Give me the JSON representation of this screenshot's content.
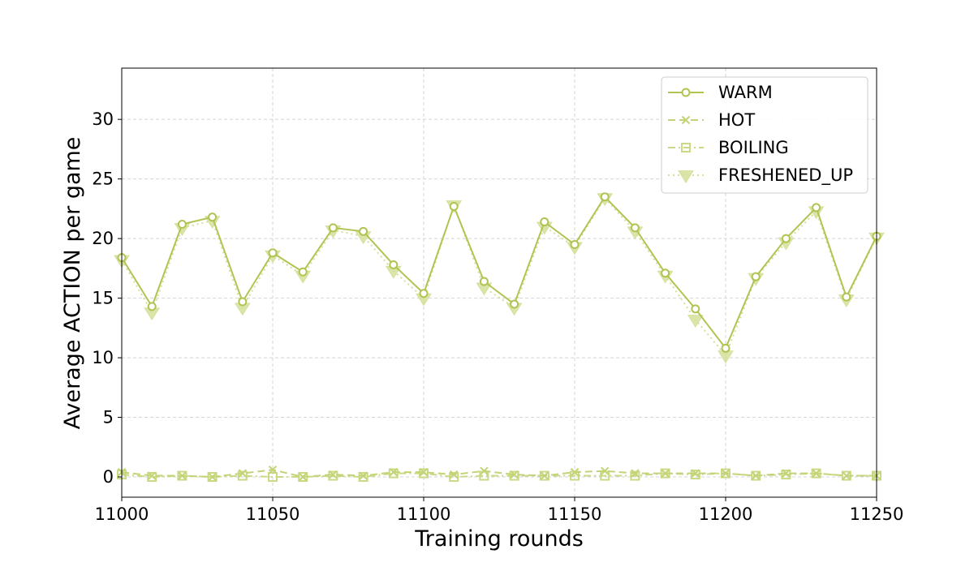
{
  "chart_data": {
    "type": "line",
    "title": "",
    "xlabel": "Training rounds",
    "ylabel": "Average ACTION per game",
    "xlim": [
      11000,
      11250
    ],
    "ylim": [
      -1.7,
      34.3
    ],
    "xticks": [
      11000,
      11050,
      11100,
      11150,
      11200,
      11250
    ],
    "yticks": [
      0,
      5,
      10,
      15,
      20,
      25,
      30
    ],
    "grid": true,
    "legend_position": "top-right",
    "x": [
      11000,
      11010,
      11020,
      11030,
      11040,
      11050,
      11060,
      11070,
      11080,
      11090,
      11100,
      11110,
      11120,
      11130,
      11140,
      11150,
      11160,
      11170,
      11180,
      11190,
      11200,
      11210,
      11220,
      11230,
      11240,
      11250
    ],
    "series": [
      {
        "name": "WARM",
        "color": "#b0c452",
        "line_style": "solid",
        "marker": "circle",
        "values": [
          18.4,
          14.3,
          21.2,
          21.8,
          14.7,
          18.8,
          17.2,
          20.9,
          20.6,
          17.8,
          15.4,
          22.7,
          16.4,
          14.5,
          21.4,
          19.5,
          23.5,
          20.9,
          17.1,
          14.1,
          10.8,
          16.8,
          20.0,
          22.6,
          15.1,
          20.2
        ]
      },
      {
        "name": "HOT",
        "color": "#c2d475",
        "line_style": "dashed",
        "marker": "x",
        "values": [
          0.4,
          0.1,
          0.1,
          0.0,
          0.3,
          0.6,
          0.0,
          0.2,
          0.1,
          0.4,
          0.4,
          0.2,
          0.5,
          0.2,
          0.1,
          0.4,
          0.5,
          0.3,
          0.3,
          0.3,
          0.3,
          0.1,
          0.3,
          0.3,
          0.1,
          0.1
        ]
      },
      {
        "name": "BOILING",
        "color": "#c9d985",
        "line_style": "dashdot",
        "marker": "square",
        "values": [
          0.2,
          0.0,
          0.1,
          0.0,
          0.1,
          0.0,
          0.0,
          0.1,
          0.0,
          0.3,
          0.3,
          0.0,
          0.1,
          0.1,
          0.1,
          0.1,
          0.1,
          0.1,
          0.3,
          0.2,
          0.3,
          0.1,
          0.2,
          0.3,
          0.1,
          0.1
        ]
      },
      {
        "name": "FRESHENED_UP",
        "color": "#d4e09a",
        "line_style": "dotted",
        "marker": "triangle-down",
        "values": [
          18.2,
          13.8,
          20.9,
          21.5,
          14.2,
          18.6,
          16.9,
          20.7,
          20.2,
          17.3,
          15.0,
          22.8,
          15.9,
          14.2,
          21.0,
          19.3,
          23.4,
          20.6,
          16.9,
          13.2,
          10.2,
          16.7,
          19.7,
          22.3,
          14.9,
          20.1
        ]
      }
    ]
  }
}
